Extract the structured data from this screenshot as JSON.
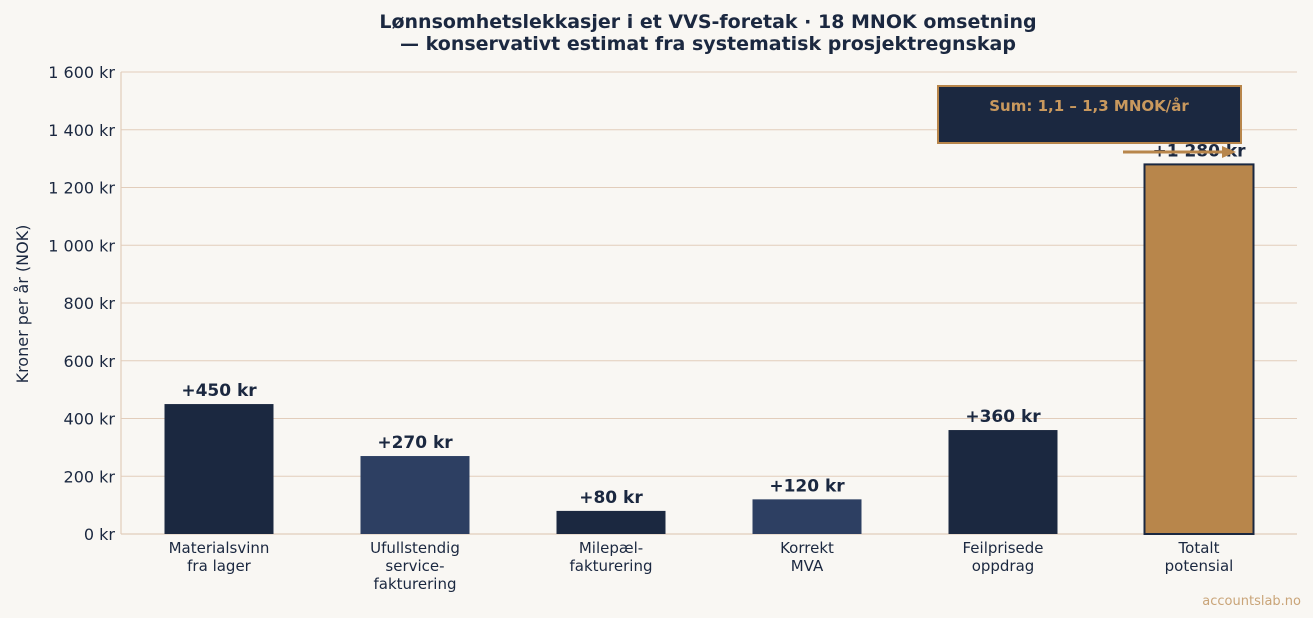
{
  "colors": {
    "background": "#f9f7f3",
    "navy": "#1b2840",
    "slate": "#2d3f62",
    "copper": "#b8864b",
    "grid": "#e2cdbb",
    "watermark": "#c9a478"
  },
  "chart_data": {
    "type": "bar",
    "title_lines": [
      "Lønnsomhetslekkasjer i et VVS-foretak · 18 MNOK omsetning",
      "— konservativt estimat fra systematisk prosjektregnskap"
    ],
    "ylabel": "Kroner per år (NOK)",
    "xlabel": "",
    "ylim": [
      0,
      1600
    ],
    "yticks": [
      0,
      200,
      400,
      600,
      800,
      1000,
      1200,
      1400,
      1600
    ],
    "ytick_labels": [
      "0 kr",
      "200 kr",
      "400 kr",
      "600 kr",
      "800 kr",
      "1 000 kr",
      "1 200 kr",
      "1 400 kr",
      "1 600 kr"
    ],
    "grid": true,
    "categories": [
      [
        "Materialsvinn",
        "fra lager"
      ],
      [
        "Ufullstendig",
        "service-",
        "fakturering"
      ],
      [
        "Milepæl-",
        "fakturering"
      ],
      [
        "Korrekt",
        "MVA"
      ],
      [
        "Feilprisede",
        "oppdrag"
      ],
      [
        "Totalt",
        "potensial"
      ]
    ],
    "values": [
      450,
      270,
      80,
      120,
      360,
      1280
    ],
    "value_labels": [
      "+450 kr",
      "+270 kr",
      "+80 kr",
      "+120 kr",
      "+360 kr",
      "+1 280 kr"
    ],
    "bar_colors": [
      "#1b2840",
      "#2d3f62",
      "#1b2840",
      "#2d3f62",
      "#1b2840",
      "#b8864b"
    ],
    "annotation": "Sum: 1,1 – 1,3 MNOK/år"
  },
  "watermark": "accountslab.no"
}
